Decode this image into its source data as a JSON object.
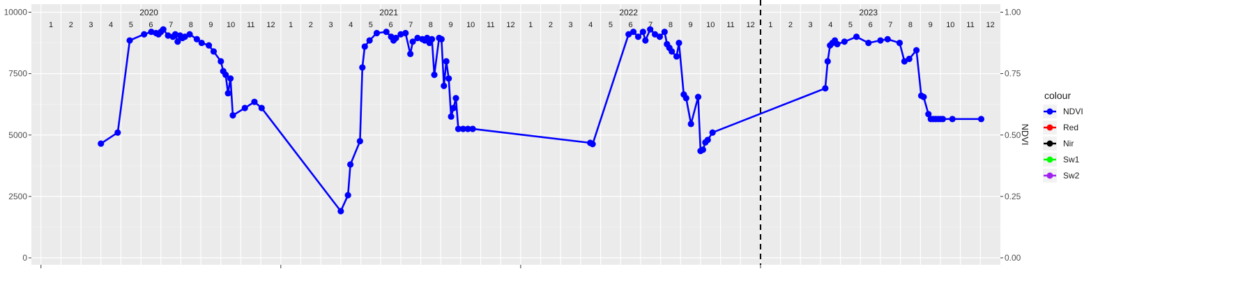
{
  "chart_data": {
    "type": "line",
    "title": "",
    "xlabel": "",
    "ylabel": "",
    "y2label": "NDVI",
    "ylim": [
      0,
      10000
    ],
    "y2lim": [
      0,
      1
    ],
    "xlim": [
      2019.96,
      2024.0
    ],
    "yticks": [
      "0",
      "2500",
      "5000",
      "7500",
      "10000"
    ],
    "y2ticks": [
      "0.00",
      "0.25",
      "0.50",
      "0.75",
      "1.00"
    ],
    "years": [
      {
        "label": "2020",
        "x": 2020.45
      },
      {
        "label": "2021",
        "x": 2021.45
      },
      {
        "label": "2022",
        "x": 2022.45
      },
      {
        "label": "2023",
        "x": 2023.45
      }
    ],
    "months": [
      "1",
      "2",
      "3",
      "4",
      "5",
      "6",
      "7",
      "8",
      "9",
      "10",
      "11",
      "12"
    ],
    "month_years": [
      2020,
      2021,
      2022,
      2023
    ],
    "vline_x": 2023.0,
    "grid": true,
    "legend": {
      "title": "colour",
      "position": "right",
      "items": [
        {
          "name": "NDVI",
          "color": "#0000ff"
        },
        {
          "name": "Red",
          "color": "#ff0000"
        },
        {
          "name": "Nir",
          "color": "#000000"
        },
        {
          "name": "Sw1",
          "color": "#00ff00"
        },
        {
          "name": "Sw2",
          "color": "#a020f0"
        }
      ]
    },
    "series": [
      {
        "name": "NDVI",
        "color": "#0000ff",
        "axis": "right",
        "x": [
          2020.25,
          2020.32,
          2020.37,
          2020.43,
          2020.46,
          2020.48,
          2020.49,
          2020.5,
          2020.51,
          2020.53,
          2020.55,
          2020.56,
          2020.57,
          2020.58,
          2020.59,
          2020.6,
          2020.62,
          2020.65,
          2020.67,
          2020.7,
          2020.72,
          2020.75,
          2020.76,
          2020.77,
          2020.78,
          2020.79,
          2020.8,
          2020.85,
          2020.89,
          2020.92,
          2021.25,
          2021.28,
          2021.29,
          2021.33,
          2021.34,
          2021.35,
          2021.37,
          2021.4,
          2021.44,
          2021.46,
          2021.47,
          2021.48,
          2021.5,
          2021.52,
          2021.54,
          2021.55,
          2021.57,
          2021.59,
          2021.6,
          2021.61,
          2021.62,
          2021.63,
          2021.64,
          2021.66,
          2021.67,
          2021.68,
          2021.69,
          2021.7,
          2021.71,
          2021.72,
          2021.73,
          2021.74,
          2021.76,
          2021.78,
          2021.8,
          2022.29,
          2022.3,
          2022.45,
          2022.47,
          2022.49,
          2022.51,
          2022.52,
          2022.54,
          2022.56,
          2022.58,
          2022.6,
          2022.61,
          2022.62,
          2022.63,
          2022.65,
          2022.66,
          2022.68,
          2022.69,
          2022.71,
          2022.74,
          2022.75,
          2022.76,
          2022.77,
          2022.78,
          2022.8,
          2023.27,
          2023.28,
          2023.29,
          2023.3,
          2023.31,
          2023.32,
          2023.35,
          2023.4,
          2023.45,
          2023.5,
          2023.53,
          2023.58,
          2023.6,
          2023.62,
          2023.65,
          2023.67,
          2023.68,
          2023.7,
          2023.71,
          2023.72,
          2023.73,
          2023.74,
          2023.75,
          2023.76,
          2023.8,
          2023.92
        ],
        "y": [
          0.465,
          0.51,
          0.885,
          0.91,
          0.92,
          0.915,
          0.91,
          0.92,
          0.93,
          0.905,
          0.9,
          0.91,
          0.88,
          0.905,
          0.895,
          0.9,
          0.91,
          0.89,
          0.875,
          0.865,
          0.84,
          0.8,
          0.76,
          0.745,
          0.67,
          0.73,
          0.58,
          0.61,
          0.635,
          0.61,
          0.19,
          0.255,
          0.38,
          0.475,
          0.775,
          0.86,
          0.885,
          0.915,
          0.92,
          0.9,
          0.885,
          0.895,
          0.91,
          0.915,
          0.83,
          0.88,
          0.895,
          0.89,
          0.885,
          0.895,
          0.875,
          0.89,
          0.745,
          0.895,
          0.89,
          0.7,
          0.8,
          0.73,
          0.575,
          0.61,
          0.65,
          0.525,
          0.525,
          0.525,
          0.525,
          0.468,
          0.463,
          0.91,
          0.92,
          0.9,
          0.92,
          0.885,
          0.93,
          0.91,
          0.9,
          0.92,
          0.87,
          0.855,
          0.84,
          0.82,
          0.875,
          0.665,
          0.65,
          0.545,
          0.655,
          0.435,
          0.44,
          0.47,
          0.48,
          0.51,
          0.69,
          0.8,
          0.865,
          0.875,
          0.885,
          0.87,
          0.88,
          0.9,
          0.875,
          0.885,
          0.89,
          0.875,
          0.8,
          0.81,
          0.845,
          0.66,
          0.655,
          0.585,
          0.565,
          0.565,
          0.565,
          0.565,
          0.565,
          0.565,
          0.565,
          0.565
        ],
        "note": ""
      }
    ]
  }
}
